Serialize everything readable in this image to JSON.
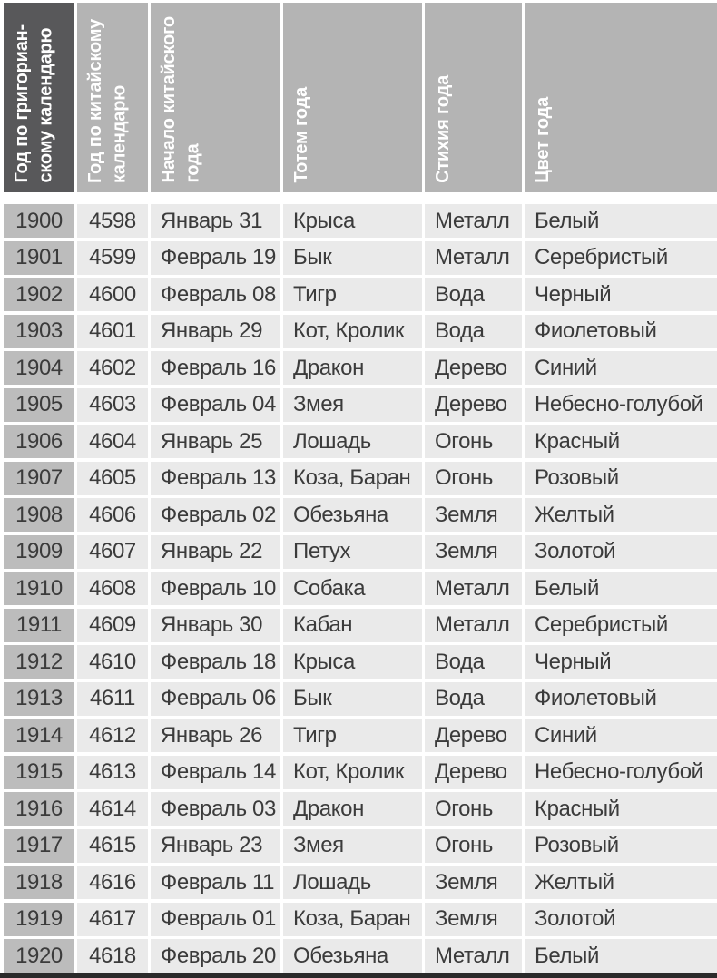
{
  "table": {
    "columns": [
      {
        "key": "gregorian_year",
        "label": "Год по григориан-\nскому календарю"
      },
      {
        "key": "chinese_year",
        "label": "Год по китайскому\nкалендарю"
      },
      {
        "key": "year_start",
        "label": "Начало китайского\nгода"
      },
      {
        "key": "totem",
        "label": "Тотем года"
      },
      {
        "key": "element",
        "label": "Стихия года"
      },
      {
        "key": "color",
        "label": "Цвет года"
      }
    ],
    "rows": [
      [
        "1900",
        "4598",
        "Январь 31",
        "Крыса",
        "Металл",
        "Белый"
      ],
      [
        "1901",
        "4599",
        "Февраль 19",
        "Бык",
        "Металл",
        "Серебристый"
      ],
      [
        "1902",
        "4600",
        "Февраль 08",
        "Тигр",
        "Вода",
        "Черный"
      ],
      [
        "1903",
        "4601",
        "Январь 29",
        "Кот, Кролик",
        "Вода",
        "Фиолетовый"
      ],
      [
        "1904",
        "4602",
        "Февраль 16",
        "Дракон",
        "Дерево",
        "Синий"
      ],
      [
        "1905",
        "4603",
        "Февраль 04",
        "Змея",
        "Дерево",
        "Небесно-голубой"
      ],
      [
        "1906",
        "4604",
        "Январь 25",
        "Лошадь",
        "Огонь",
        "Красный"
      ],
      [
        "1907",
        "4605",
        "Февраль 13",
        "Коза, Баран",
        "Огонь",
        "Розовый"
      ],
      [
        "1908",
        "4606",
        "Февраль 02",
        "Обезьяна",
        "Земля",
        "Желтый"
      ],
      [
        "1909",
        "4607",
        "Январь 22",
        "Петух",
        "Земля",
        "Золотой"
      ],
      [
        "1910",
        "4608",
        "Февраль 10",
        "Собака",
        "Металл",
        "Белый"
      ],
      [
        "1911",
        "4609",
        "Январь 30",
        "Кабан",
        "Металл",
        "Серебристый"
      ],
      [
        "1912",
        "4610",
        "Февраль 18",
        "Крыса",
        "Вода",
        "Черный"
      ],
      [
        "1913",
        "4611",
        "Февраль 06",
        "Бык",
        "Вода",
        "Фиолетовый"
      ],
      [
        "1914",
        "4612",
        "Январь 26",
        "Тигр",
        "Дерево",
        "Синий"
      ],
      [
        "1915",
        "4613",
        "Февраль 14",
        "Кот, Кролик",
        "Дерево",
        "Небесно-голубой"
      ],
      [
        "1916",
        "4614",
        "Февраль 03",
        "Дракон",
        "Огонь",
        "Красный"
      ],
      [
        "1917",
        "4615",
        "Январь 23",
        "Змея",
        "Огонь",
        "Розовый"
      ],
      [
        "1918",
        "4616",
        "Февраль 11",
        "Лошадь",
        "Земля",
        "Желтый"
      ],
      [
        "1919",
        "4617",
        "Февраль 01",
        "Коза, Баран",
        "Земля",
        "Золотой"
      ],
      [
        "1920",
        "4618",
        "Февраль 20",
        "Обезьяна",
        "Металл",
        "Белый"
      ]
    ]
  },
  "colors": {
    "header_dark": "#58585a",
    "header_gray": "#b4b4b4",
    "firstcol_gray": "#bcbcbc",
    "cell_gray": "#eaeaea",
    "text": "#3b3b3b",
    "header_text": "#ffffff",
    "bottom_bar": "#2b2b2b",
    "page_bg": "#ffffff"
  }
}
